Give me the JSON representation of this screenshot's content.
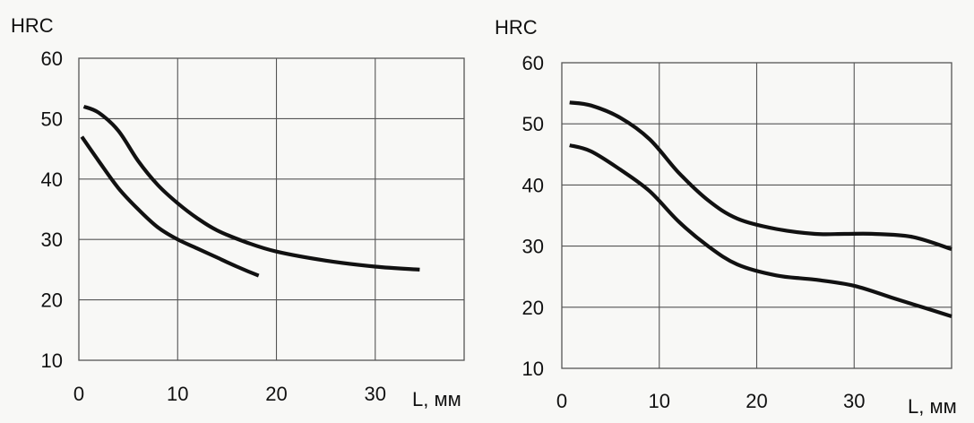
{
  "chart_data": [
    {
      "type": "line",
      "title": "",
      "ylabel": "HRC",
      "xlabel": "L, мм",
      "xlim": [
        0,
        39
      ],
      "ylim": [
        10,
        60
      ],
      "xticks": [
        0,
        10,
        20,
        30
      ],
      "yticks": [
        10,
        20,
        30,
        40,
        50,
        60
      ],
      "xtick_labels": [
        "0",
        "10",
        "20",
        "30"
      ],
      "ytick_labels": [
        "10",
        "20",
        "30",
        "40",
        "50",
        "60"
      ],
      "grid": true,
      "series": [
        {
          "x": [
            0.5,
            2,
            4,
            6,
            8,
            10,
            12,
            14,
            17,
            20,
            25,
            30,
            34.5
          ],
          "values": [
            52,
            51,
            48,
            43,
            39,
            36,
            33.5,
            31.5,
            29.5,
            28,
            26.5,
            25.5,
            25
          ]
        },
        {
          "x": [
            0.3,
            2,
            4,
            6,
            8,
            10,
            12,
            14,
            16,
            18.2
          ],
          "values": [
            47,
            43,
            38.5,
            35,
            32,
            30,
            28.5,
            27,
            25.5,
            24
          ]
        }
      ]
    },
    {
      "type": "line",
      "title": "",
      "ylabel": "HRC",
      "xlabel": "L, мм",
      "xlim": [
        0,
        40
      ],
      "ylim": [
        10,
        60
      ],
      "xticks": [
        0,
        10,
        20,
        30
      ],
      "yticks": [
        10,
        20,
        30,
        40,
        50,
        60
      ],
      "xtick_labels": [
        "0",
        "10",
        "20",
        "30"
      ],
      "ytick_labels": [
        "10",
        "20",
        "30",
        "40",
        "50",
        "60"
      ],
      "grid": true,
      "series": [
        {
          "x": [
            0.8,
            3,
            6,
            9,
            12,
            15,
            18,
            22,
            26,
            29,
            32,
            36,
            40
          ],
          "values": [
            53.5,
            53,
            51,
            47.5,
            42,
            37.5,
            34.5,
            32.8,
            32,
            32,
            32,
            31.5,
            29.5
          ]
        },
        {
          "x": [
            0.8,
            3,
            6,
            9,
            12,
            15,
            18,
            22,
            26,
            30,
            34,
            37,
            40
          ],
          "values": [
            46.5,
            45.5,
            42.5,
            39,
            34,
            30,
            27,
            25.2,
            24.5,
            23.5,
            21.5,
            20,
            18.5
          ]
        }
      ]
    }
  ],
  "colors": {
    "line": "#111111",
    "grid": "#555555",
    "background": "#f8f8f6"
  }
}
